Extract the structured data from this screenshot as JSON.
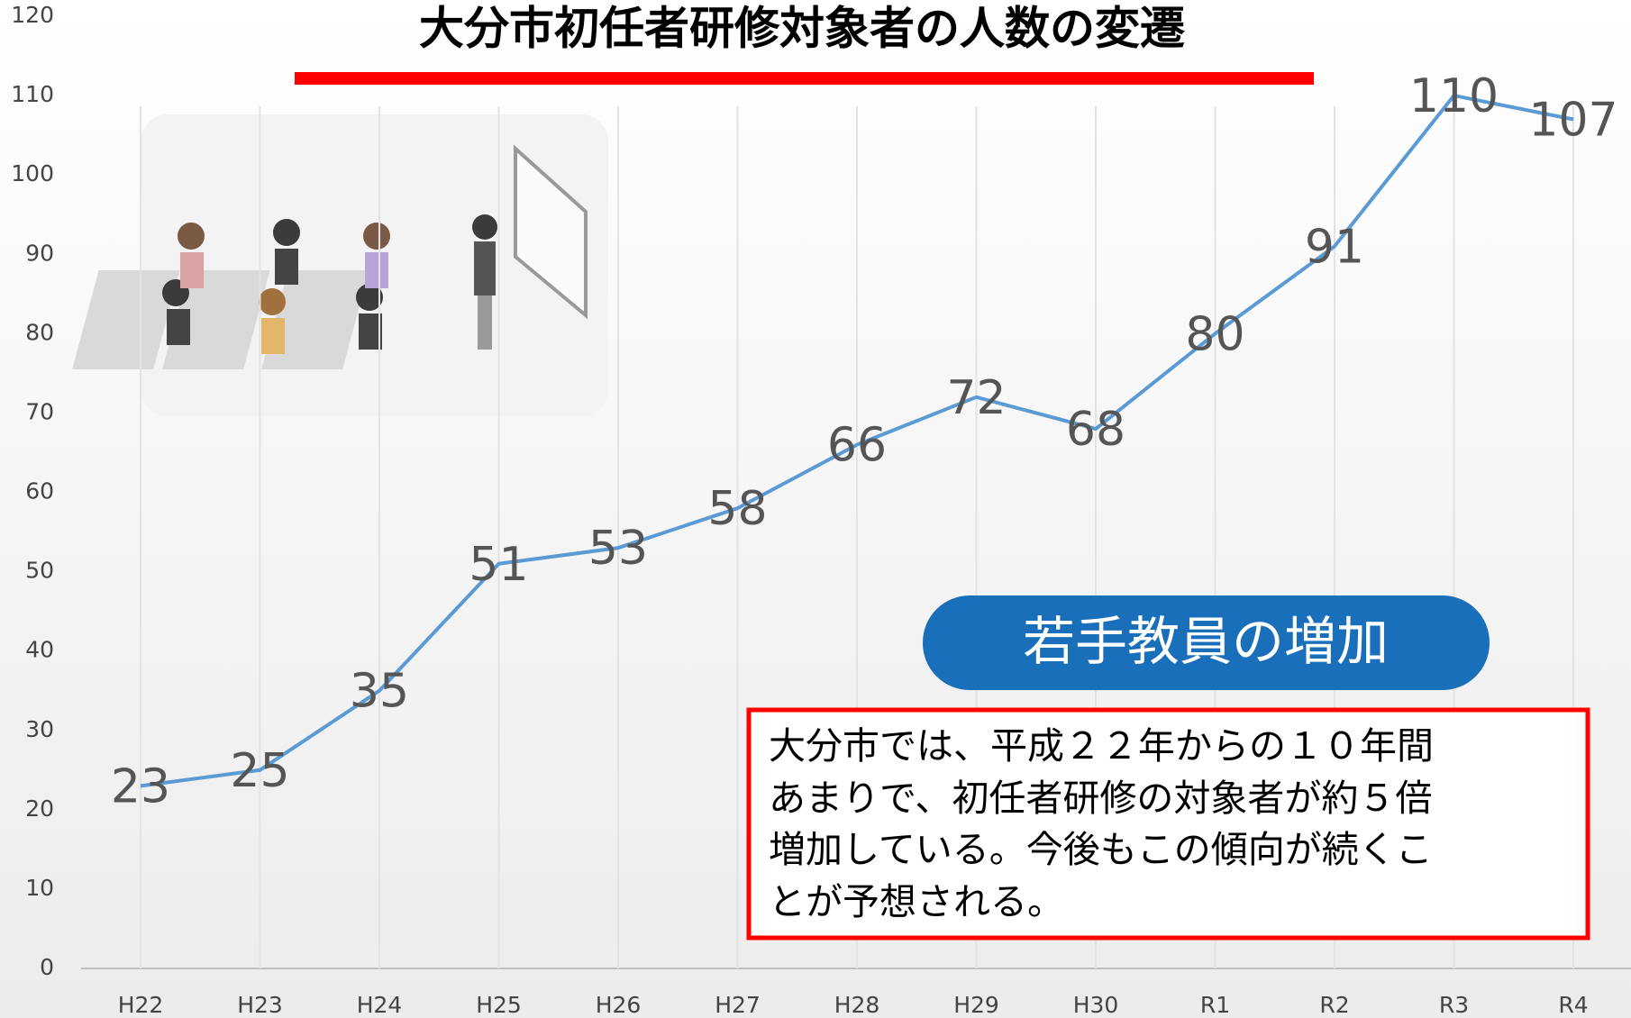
{
  "chart_data": {
    "type": "line",
    "title": "大分市初任者研修対象者の人数の変遷",
    "categories": [
      "H22",
      "H23",
      "H24",
      "H25",
      "H26",
      "H27",
      "H28",
      "H29",
      "H30",
      "R1",
      "R2",
      "R3",
      "R4"
    ],
    "values": [
      23,
      25,
      35,
      51,
      53,
      58,
      66,
      72,
      68,
      80,
      91,
      110,
      107
    ],
    "color": "#5b9bd5",
    "ylim": [
      0,
      120
    ],
    "yticks": [
      0,
      10,
      20,
      30,
      40,
      50,
      60,
      70,
      80,
      90,
      100,
      110,
      120
    ],
    "grid": true,
    "annotations": {
      "badge": "若手教員の増加",
      "note": [
        "大分市では、平成２２年からの１０年間",
        "あまりで、初任者研修の対象者が約５倍",
        "増加している。今後もこの傾向が続くこ",
        "とが予想される。"
      ]
    }
  }
}
